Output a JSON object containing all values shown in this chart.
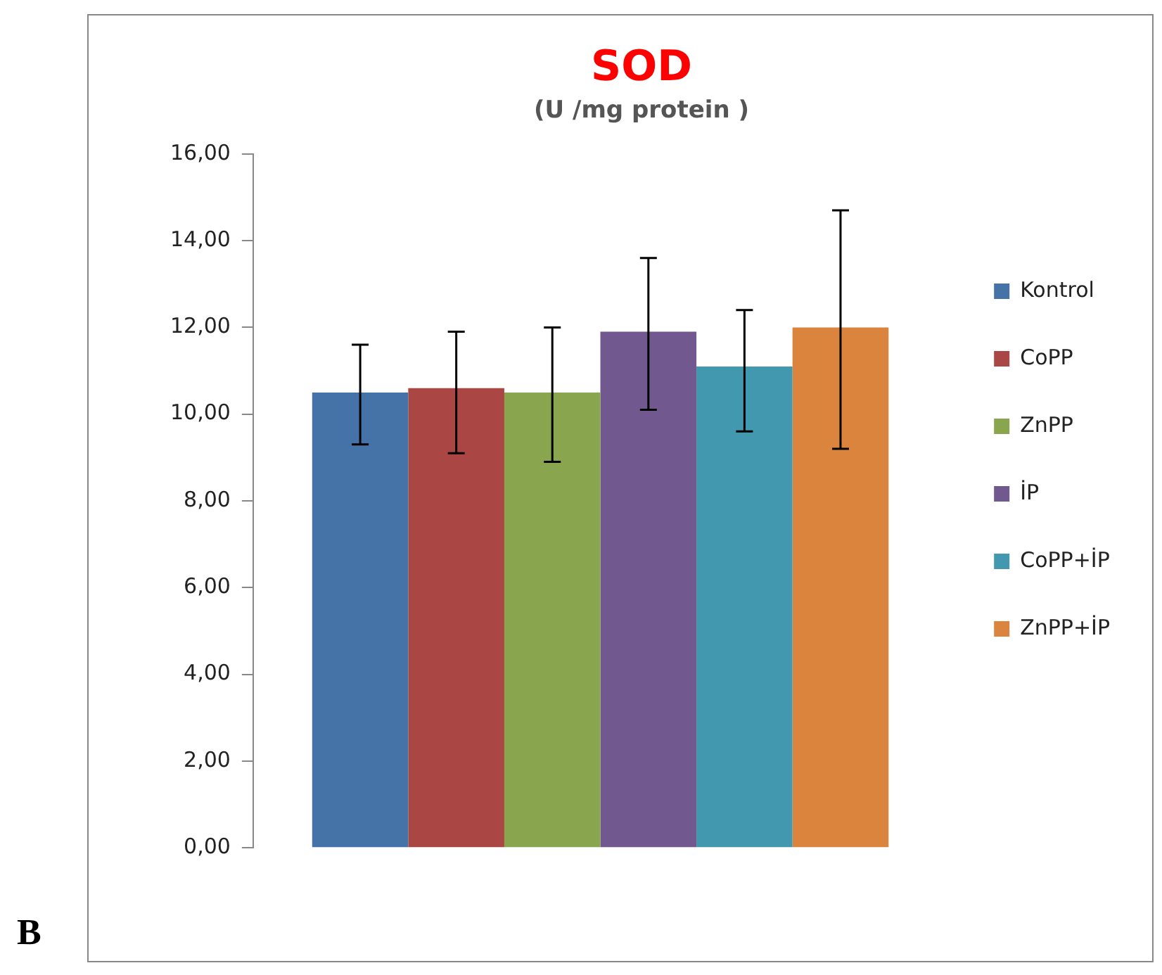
{
  "chart_data": {
    "type": "bar",
    "title": "SOD",
    "subtitle": "(U /mg protein )",
    "categories": [
      null
    ],
    "series": [
      {
        "name": "Kontrol",
        "color": "#4572a7",
        "values": [
          10.5
        ],
        "errors": [
          [
            9.3,
            11.6
          ]
        ]
      },
      {
        "name": "CoPP",
        "color": "#aa4643",
        "values": [
          10.6
        ],
        "errors": [
          [
            9.1,
            11.9
          ]
        ]
      },
      {
        "name": "ZnPP",
        "color": "#89a54e",
        "values": [
          10.5
        ],
        "errors": [
          [
            8.9,
            12.0
          ]
        ]
      },
      {
        "name": "İP",
        "color": "#71588f",
        "values": [
          11.9
        ],
        "errors": [
          [
            10.1,
            13.6
          ]
        ]
      },
      {
        "name": "CoPP+İP",
        "color": "#4198af",
        "values": [
          11.1
        ],
        "errors": [
          [
            9.6,
            12.4
          ]
        ]
      },
      {
        "name": "ZnPP+İP",
        "color": "#db843d",
        "values": [
          12.0
        ],
        "errors": [
          [
            9.2,
            14.7
          ]
        ]
      }
    ],
    "ylim": [
      0,
      16
    ],
    "yticks": [
      {
        "value": 0,
        "label": "0,00"
      },
      {
        "value": 2,
        "label": "2,00"
      },
      {
        "value": 4,
        "label": "4,00"
      },
      {
        "value": 6,
        "label": "6,00"
      },
      {
        "value": 8,
        "label": "8,00"
      },
      {
        "value": 10,
        "label": "10,00"
      },
      {
        "value": 12,
        "label": "12,00"
      },
      {
        "value": 14,
        "label": "14,00"
      },
      {
        "value": 16,
        "label": "16,00"
      }
    ],
    "grid": false,
    "legend": "right",
    "annotations": [
      "B"
    ]
  }
}
